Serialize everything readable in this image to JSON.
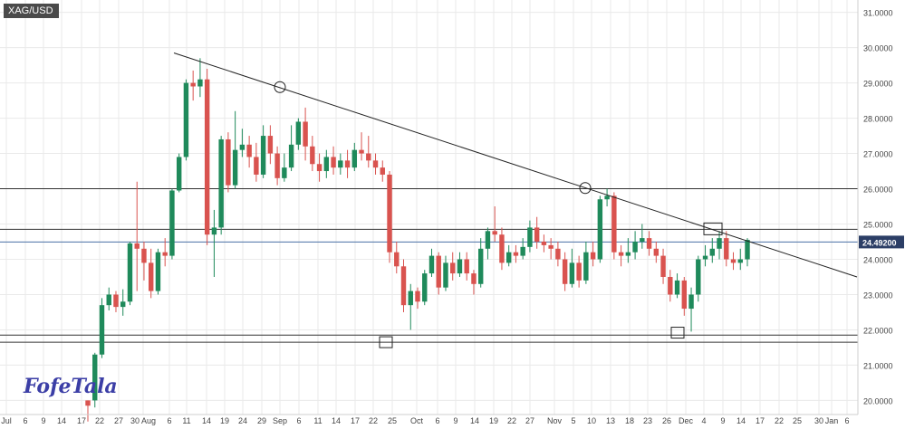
{
  "symbol": "XAG/USD",
  "logo_text": "FofeTala",
  "current_price_label": "24.49200",
  "colors": {
    "up": "#1f8a5b",
    "down": "#d9534f",
    "grid": "#eaeaea",
    "line": "#222222",
    "price_badge": "#2c3e66"
  },
  "chart_data": {
    "type": "candlestick",
    "y_axis": {
      "min": 19.6,
      "max": 31.35,
      "ticks": [
        "20.0000",
        "21.0000",
        "22.0000",
        "23.0000",
        "24.0000",
        "25.0000",
        "26.0000",
        "27.0000",
        "28.0000",
        "29.0000",
        "30.0000",
        "31.0000"
      ]
    },
    "x_axis_labels": [
      "Jul",
      "6",
      "9",
      "14",
      "17",
      "22",
      "27",
      "30 Aug",
      "6",
      "11",
      "14",
      "19",
      "24",
      "29",
      "Sep",
      "6",
      "11",
      "14",
      "17",
      "22",
      "25",
      "Oct",
      "6",
      "9",
      "14",
      "19",
      "22",
      "27",
      "Nov",
      "5",
      "10",
      "13",
      "18",
      "23",
      "26",
      "Dec",
      "4",
      "9",
      "14",
      "17",
      "22",
      "25",
      "30",
      "Jan",
      "6"
    ],
    "horizontal_levels": [
      26.0,
      24.85,
      24.49,
      21.85,
      21.65
    ],
    "trendline": {
      "from": {
        "index": 0,
        "price": 29.85
      },
      "to": {
        "index": 1,
        "price": 23.5
      }
    },
    "markers": [
      {
        "shape": "circle",
        "index": 0,
        "price": 28.88
      },
      {
        "shape": "circle",
        "index": 1,
        "price": 26.02
      },
      {
        "shape": "square",
        "index": 2,
        "price": 21.65
      },
      {
        "shape": "square",
        "index": 3,
        "price": 21.92
      },
      {
        "shape": "rect",
        "index": 4,
        "price": 24.85
      }
    ],
    "candles": [
      [
        20.0,
        19.85,
        20.0,
        19.4
      ],
      [
        20.0,
        21.3,
        21.35,
        19.8
      ],
      [
        21.3,
        22.7,
        22.9,
        21.2
      ],
      [
        22.7,
        23.0,
        23.2,
        22.55
      ],
      [
        23.0,
        22.65,
        23.1,
        22.5
      ],
      [
        22.65,
        22.8,
        23.15,
        22.4
      ],
      [
        22.8,
        24.45,
        24.5,
        22.7
      ],
      [
        24.45,
        24.3,
        26.2,
        23.1
      ],
      [
        24.3,
        23.9,
        24.5,
        23.4
      ],
      [
        23.9,
        23.1,
        24.3,
        22.9
      ],
      [
        23.1,
        24.2,
        24.3,
        23.0
      ],
      [
        24.2,
        24.1,
        24.6,
        23.8
      ],
      [
        24.1,
        25.95,
        26.0,
        24.0
      ],
      [
        25.95,
        26.9,
        27.0,
        25.9
      ],
      [
        26.9,
        29.0,
        29.1,
        26.8
      ],
      [
        29.0,
        28.9,
        29.35,
        28.5
      ],
      [
        28.9,
        29.1,
        29.7,
        28.6
      ],
      [
        29.1,
        24.7,
        29.4,
        24.4
      ],
      [
        24.7,
        24.9,
        25.4,
        23.5
      ],
      [
        24.9,
        27.4,
        27.5,
        24.7
      ],
      [
        27.4,
        26.1,
        27.6,
        25.9
      ],
      [
        26.1,
        27.1,
        28.2,
        26.0
      ],
      [
        27.1,
        27.25,
        27.7,
        26.9
      ],
      [
        27.25,
        26.9,
        27.5,
        26.6
      ],
      [
        26.9,
        26.4,
        27.3,
        26.2
      ],
      [
        26.4,
        27.5,
        27.8,
        26.3
      ],
      [
        27.5,
        27.0,
        27.8,
        26.7
      ],
      [
        27.0,
        26.3,
        27.2,
        26.1
      ],
      [
        26.3,
        26.6,
        27.0,
        26.2
      ],
      [
        26.6,
        27.25,
        27.8,
        26.5
      ],
      [
        27.25,
        27.9,
        28.0,
        27.1
      ],
      [
        27.9,
        27.2,
        28.3,
        26.8
      ],
      [
        27.2,
        26.7,
        27.5,
        26.5
      ],
      [
        26.7,
        26.5,
        27.0,
        26.2
      ],
      [
        26.5,
        26.9,
        27.1,
        26.3
      ],
      [
        26.9,
        26.6,
        27.2,
        26.4
      ],
      [
        26.6,
        26.8,
        27.0,
        26.4
      ],
      [
        26.8,
        26.6,
        27.1,
        26.3
      ],
      [
        26.6,
        27.1,
        27.3,
        26.5
      ],
      [
        27.1,
        27.0,
        27.6,
        26.8
      ],
      [
        27.0,
        26.8,
        27.5,
        26.6
      ],
      [
        26.8,
        26.6,
        27.0,
        26.4
      ],
      [
        26.6,
        26.4,
        26.8,
        26.2
      ],
      [
        26.4,
        24.2,
        26.5,
        23.9
      ],
      [
        24.2,
        23.8,
        24.5,
        23.6
      ],
      [
        23.8,
        22.7,
        24.0,
        22.5
      ],
      [
        22.7,
        23.1,
        23.3,
        22.0
      ],
      [
        23.1,
        22.8,
        23.2,
        22.6
      ],
      [
        22.8,
        23.6,
        23.7,
        22.7
      ],
      [
        23.6,
        24.1,
        24.3,
        23.5
      ],
      [
        24.1,
        23.2,
        24.2,
        23.0
      ],
      [
        23.2,
        23.9,
        24.1,
        23.1
      ],
      [
        23.9,
        23.6,
        24.2,
        23.4
      ],
      [
        23.6,
        24.0,
        24.2,
        23.5
      ],
      [
        24.0,
        23.6,
        24.2,
        23.4
      ],
      [
        23.6,
        23.3,
        23.7,
        23.0
      ],
      [
        23.3,
        24.3,
        24.6,
        23.2
      ],
      [
        24.3,
        24.8,
        24.9,
        24.0
      ],
      [
        24.8,
        24.7,
        25.5,
        24.5
      ],
      [
        24.7,
        23.9,
        24.9,
        23.7
      ],
      [
        23.9,
        24.2,
        24.4,
        23.8
      ],
      [
        24.2,
        24.1,
        24.4,
        23.9
      ],
      [
        24.1,
        24.35,
        24.6,
        24.0
      ],
      [
        24.35,
        24.9,
        25.1,
        24.2
      ],
      [
        24.9,
        24.5,
        25.2,
        24.3
      ],
      [
        24.5,
        24.4,
        24.7,
        24.2
      ],
      [
        24.4,
        24.3,
        24.6,
        24.0
      ],
      [
        24.3,
        24.0,
        24.5,
        23.8
      ],
      [
        24.0,
        23.3,
        24.2,
        23.1
      ],
      [
        23.3,
        23.9,
        24.3,
        23.2
      ],
      [
        23.9,
        23.4,
        24.1,
        23.2
      ],
      [
        23.4,
        24.2,
        24.5,
        23.3
      ],
      [
        24.2,
        24.0,
        24.5,
        23.8
      ],
      [
        24.0,
        25.7,
        25.8,
        23.9
      ],
      [
        25.7,
        25.8,
        26.0,
        25.5
      ],
      [
        25.8,
        24.2,
        25.9,
        24.0
      ],
      [
        24.2,
        24.1,
        24.4,
        23.8
      ],
      [
        24.1,
        24.2,
        24.6,
        23.9
      ],
      [
        24.2,
        24.5,
        24.8,
        24.0
      ],
      [
        24.5,
        24.6,
        25.0,
        24.3
      ],
      [
        24.6,
        24.3,
        24.8,
        24.1
      ],
      [
        24.3,
        24.1,
        24.5,
        23.9
      ],
      [
        24.1,
        23.5,
        24.3,
        23.3
      ],
      [
        23.5,
        23.0,
        23.7,
        22.8
      ],
      [
        23.0,
        23.4,
        23.6,
        22.9
      ],
      [
        23.4,
        22.6,
        23.5,
        22.4
      ],
      [
        22.6,
        23.0,
        23.2,
        21.95
      ],
      [
        23.0,
        24.0,
        24.1,
        22.8
      ],
      [
        24.0,
        24.1,
        24.4,
        23.8
      ],
      [
        24.1,
        24.3,
        24.6,
        23.9
      ],
      [
        24.3,
        24.6,
        24.8,
        24.0
      ],
      [
        24.6,
        24.0,
        24.8,
        23.8
      ],
      [
        24.0,
        23.9,
        24.2,
        23.7
      ],
      [
        23.9,
        24.0,
        24.3,
        23.7
      ],
      [
        24.0,
        24.55,
        24.6,
        23.8
      ]
    ]
  }
}
